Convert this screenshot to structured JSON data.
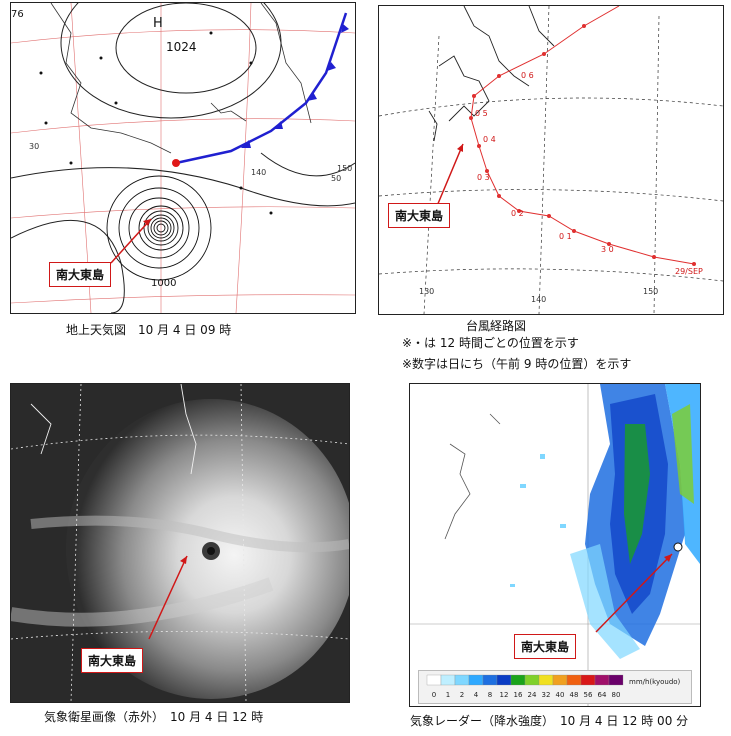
{
  "surface_map": {
    "caption_title": "地上天気図",
    "caption_time": "10 月 4 日 09 時",
    "high_label": "H",
    "high_pressure": "1024",
    "low_isobar": "1000",
    "corner_number": "76",
    "lon_labels": [
      "140",
      "150"
    ],
    "lat_labels": [
      "30",
      "50"
    ],
    "callout": "南大東島"
  },
  "track_map": {
    "caption_title": "台風経路図",
    "note1": "※・は 12 時間ごとの位置を示す",
    "note2": "※数字は日にち（午前 9 時の位置）を示す",
    "day_labels": [
      "0 6",
      "0 5",
      "0 4",
      "0 3",
      "0 2",
      "0 1",
      "3 0",
      "29/SEP"
    ],
    "lon_labels": [
      "130",
      "140",
      "150"
    ],
    "callout": "南大東島"
  },
  "satellite": {
    "caption": "気象衛星画像（赤外）　10 月 4 日 12 時",
    "callout": "南大東島"
  },
  "radar": {
    "caption": "気象レーダー（降水強度）　10 月 4 日 12 時 00 分",
    "legend_unit": "mm/h(kyoudo)",
    "legend_values": [
      "0",
      "1",
      "2",
      "4",
      "8",
      "12",
      "16",
      "24",
      "32",
      "40",
      "48",
      "56",
      "64",
      "80"
    ],
    "legend_colors": [
      "#ffffff",
      "#bfefff",
      "#7fd7ff",
      "#2fa9ff",
      "#1e6fe0",
      "#0a3cc4",
      "#1aa31a",
      "#7fd02a",
      "#f0e020",
      "#f0a020",
      "#f06010",
      "#d81818",
      "#a0106a",
      "#6a006a"
    ],
    "callout": "南大東島"
  }
}
